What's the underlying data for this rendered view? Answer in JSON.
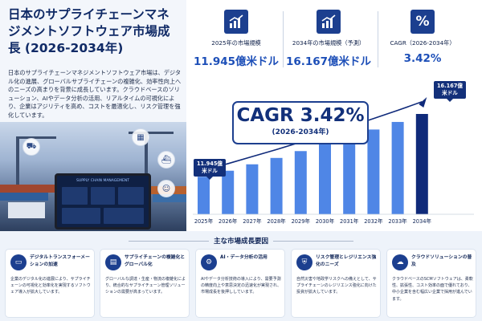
{
  "left": {
    "title": "日本のサプライチェーンマネジメントソフトウェア市場成長 (2026-2034年)",
    "description": "日本のサプライチェーンマネジメントソフトウェア市場は、デジタル化の進展、グローバルサプライチェーンの複雑化、効率性向上へのニーズの高まりを背景に成長しています。クラウドベースのソリューション、AIやデータ分析の活用、リアルタイムの可視化により、企業はアジリティを高め、コストを最適化し、リスク管理を強化しています。",
    "tablet_title": "SUPPLY CHAIN MANAGEMENT",
    "photo_icons": [
      "truck-icon",
      "factory-icon",
      "ship-icon",
      "person-icon"
    ]
  },
  "stats": [
    {
      "icon": "bar-growth-icon",
      "label": "2025年の市場規模",
      "value": "11.945億米ドル"
    },
    {
      "icon": "bar-growth-icon",
      "label": "2034年の市場規模（予測）",
      "value": "16.167億米ドル"
    },
    {
      "icon": "percent-icon",
      "label": "CAGR（2026-2034年）",
      "value": "3.42%"
    }
  ],
  "cagr_box": {
    "main": "CAGR 3.42%",
    "sub": "(2026-2034年)"
  },
  "chart_data": {
    "type": "bar",
    "categories": [
      "2025年",
      "2026年",
      "2027年",
      "2028年",
      "2029年",
      "2030年",
      "2031年",
      "2032年",
      "2033年",
      "2034年"
    ],
    "values": [
      11.945,
      12.35,
      12.78,
      13.21,
      13.67,
      14.13,
      14.62,
      15.12,
      15.63,
      16.167
    ],
    "unit": "億米ドル",
    "annotations": [
      {
        "category": "2025年",
        "text": "11.945億米ドル"
      },
      {
        "category": "2034年",
        "text": "16.167億米ドル"
      }
    ],
    "grid": false,
    "colors": {
      "bar": "#4f86e6",
      "bar_last": "#0f2a7a",
      "trend": "#0f2a7a"
    }
  },
  "factors": {
    "title": "主な市場成長要因",
    "items": [
      {
        "icon": "monitor-icon",
        "title": "デジタルトランスフォーメーションの加速",
        "text": "企業のデジタル化の進展により、サプライチェーンの可視化と効率化を実現するソフトウェア導入が拡大しています。"
      },
      {
        "icon": "chart-icon",
        "title": "サプライチェーンの複雑化とグローバル化",
        "text": "グローバルな調達・生産・物流の複雑化により、統合的なサプライチェーン管理ソリューションの需要が高まっています。"
      },
      {
        "icon": "gear-icon",
        "title": "AI・データ分析の活用",
        "text": "AIやデータ分析技術の導入により、需要予測の精度向上や意思決定の迅速化が実現され、市場成長を後押ししています。"
      },
      {
        "icon": "shield-icon",
        "title": "リスク管理とレジリエンス強化のニーズ",
        "text": "自然災害や地政学リスクへの備えとして、サプライチェーンのレジリエンス強化に向けた投資が拡大しています。"
      },
      {
        "icon": "cloud-icon",
        "title": "クラウドソリューションの普及",
        "text": "クラウドベースのSCMソフトウェアは、柔軟性、拡張性、コスト効率の面で優れており、中小企業を含む幅広い企業で採用が進んでいます。"
      }
    ]
  }
}
